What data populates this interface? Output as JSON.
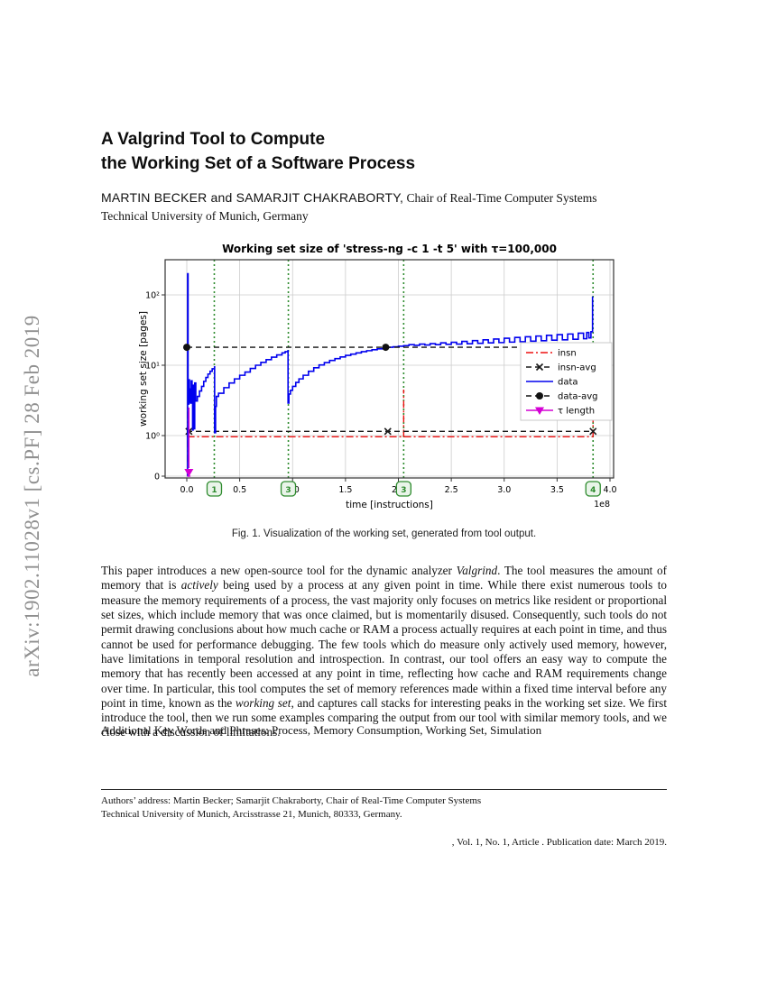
{
  "arxiv_watermark": "arXiv:1902.11028v1  [cs.PF]  28 Feb 2019",
  "header": {
    "title_line1": "A Valgrind Tool to Compute",
    "title_line2": "the Working Set of a Software Process",
    "authors_caps": "MARTIN BECKER and SAMARJIT CHAKRABORTY,",
    "authors_affiliation": " Chair of Real-Time Computer Systems",
    "affiliation_line": "Technical University of Munich, Germany"
  },
  "figure": {
    "caption": "Fig. 1.  Visualization of the working set, generated from tool output."
  },
  "abstract_runs": [
    {
      "t": "This paper introduces a new open-source tool for the dynamic analyzer "
    },
    {
      "t": "Valgrind",
      "i": true
    },
    {
      "t": ". The tool measures the amount of memory that is "
    },
    {
      "t": "actively",
      "i": true
    },
    {
      "t": " being used by a process at any given point in time. While there exist numerous tools to measure the memory requirements of a process, the vast majority only focuses on metrics like resident or proportional set sizes, which include memory that was once claimed, but is momentarily disused. Consequently, such tools do not permit drawing conclusions about how much cache or RAM a process actually requires at each point in time, and thus cannot be used for performance debugging. The few tools which do measure only actively used memory, however, have limitations in temporal resolution and introspection. In contrast, our tool offers an easy way to compute the memory that has recently been accessed at any point in time, reflecting how cache and RAM requirements change over time. In particular, this tool computes the set of memory references made within a fixed time interval before any point in time, known as the "
    },
    {
      "t": "working set",
      "i": true
    },
    {
      "t": ", and captures call stacks for interesting peaks in the working set size. We first introduce the tool, then we run some examples comparing the output from our tool with similar memory tools, and we close with a discussion of limitations."
    }
  ],
  "keywords": "Additional Key Words and Phrases: Process, Memory Consumption, Working Set, Simulation",
  "footnote": {
    "line1": "Authors’ address: Martin Becker; Samarjit Chakraborty, Chair of Real-Time Computer Systems",
    "line2": "Technical University of Munich, Arcisstrasse 21, Munich, 80333, Germany."
  },
  "pubinfo": ", Vol. 1, No. 1, Article . Publication date: March 2019.",
  "chart_data": {
    "type": "line",
    "title": "Working set size of 'stress-ng -c 1 -t 5' with τ=100,000",
    "xlabel": "time [instructions]",
    "ylabel": "working set size [pages]",
    "x_offset_label": "1e8",
    "x_ticks": [
      0.0,
      0.5,
      1.0,
      1.5,
      2.0,
      2.5,
      3.0,
      3.5,
      4.0
    ],
    "xlim": [
      -0.205,
      4.034
    ],
    "y_scale": "symlog",
    "y_ticks": [
      {
        "v": 0,
        "label": "0"
      },
      {
        "v": 1,
        "label": "10⁰"
      },
      {
        "v": 10,
        "label": "10¹"
      },
      {
        "v": 100,
        "label": "10²"
      }
    ],
    "grid": true,
    "legend_position": "center right",
    "grid_color": "#cccccc",
    "events": {
      "color": "#2e8b2e",
      "box_fill": "#e9f4e9",
      "x": [
        0.26,
        0.96,
        2.05,
        3.84
      ],
      "labels": [
        "1",
        "3",
        "3",
        "4"
      ]
    },
    "series": [
      {
        "name": "insn",
        "color": "#ee1111",
        "style": "dashdot",
        "segments": [
          [
            [
              0.005,
              0.97
            ],
            [
              3.84,
              0.97
            ]
          ],
          [
            [
              0.008,
              0.35
            ],
            [
              0.008,
              2.8
            ]
          ],
          [
            [
              2.05,
              0.97
            ],
            [
              2.05,
              4.5
            ]
          ],
          [
            [
              3.84,
              0.97
            ],
            [
              3.84,
              2.8
            ]
          ]
        ]
      },
      {
        "name": "insn-avg",
        "color": "#1a1a1a",
        "style": "dashed",
        "marker": "x",
        "marker_points": [
          [
            0.02,
            1.15
          ],
          [
            1.9,
            1.15
          ],
          [
            3.84,
            1.15
          ]
        ],
        "segments": [
          [
            [
              0.0,
              1.15
            ],
            [
              3.84,
              1.15
            ]
          ]
        ]
      },
      {
        "name": "data",
        "color": "#0000ee",
        "style": "solid",
        "step": true,
        "segments": [
          [
            [
              0.005,
              0
            ],
            [
              0.008,
              200
            ],
            [
              0.012,
              2.8
            ],
            [
              0.02,
              6.2
            ],
            [
              0.025,
              3.0
            ],
            [
              0.03,
              4.6
            ],
            [
              0.035,
              2.9
            ],
            [
              0.042,
              6.0
            ],
            [
              0.05,
              3.0
            ],
            [
              0.055,
              1.2
            ],
            [
              0.06,
              5.2
            ],
            [
              0.068,
              1.25
            ],
            [
              0.075,
              5.6
            ],
            [
              0.085,
              3.1
            ],
            [
              0.1,
              3.6
            ],
            [
              0.12,
              4.3
            ],
            [
              0.14,
              5.0
            ],
            [
              0.16,
              5.9
            ],
            [
              0.18,
              6.7
            ],
            [
              0.2,
              7.5
            ],
            [
              0.22,
              8.2
            ],
            [
              0.24,
              8.9
            ],
            [
              0.262,
              9.5
            ],
            [
              0.263,
              1.1
            ],
            [
              0.272,
              2.6
            ],
            [
              0.28,
              3.6
            ],
            [
              0.3,
              4.0
            ],
            [
              0.35,
              4.8
            ],
            [
              0.4,
              5.6
            ],
            [
              0.45,
              6.4
            ],
            [
              0.5,
              7.2
            ],
            [
              0.55,
              8.0
            ],
            [
              0.6,
              9.0
            ],
            [
              0.65,
              10.0
            ],
            [
              0.7,
              11.0
            ],
            [
              0.75,
              12.0
            ],
            [
              0.8,
              13.0
            ],
            [
              0.85,
              14.0
            ],
            [
              0.9,
              15.0
            ],
            [
              0.93,
              15.6
            ],
            [
              0.956,
              16.1
            ],
            [
              0.957,
              2.9
            ],
            [
              0.965,
              3.9
            ],
            [
              0.98,
              4.4
            ],
            [
              1.0,
              5.0
            ],
            [
              1.03,
              5.7
            ],
            [
              1.06,
              6.4
            ],
            [
              1.1,
              7.2
            ],
            [
              1.15,
              8.2
            ],
            [
              1.2,
              9.2
            ],
            [
              1.25,
              10.1
            ],
            [
              1.3,
              10.9
            ],
            [
              1.35,
              11.7
            ],
            [
              1.4,
              12.4
            ],
            [
              1.45,
              13.1
            ],
            [
              1.5,
              13.8
            ],
            [
              1.55,
              14.4
            ],
            [
              1.6,
              15.0
            ],
            [
              1.65,
              15.6
            ],
            [
              1.7,
              16.1
            ],
            [
              1.75,
              16.6
            ],
            [
              1.8,
              17.1
            ],
            [
              1.85,
              17.5
            ],
            [
              1.9,
              18.0
            ],
            [
              1.95,
              18.3
            ],
            [
              2.0,
              18.6
            ],
            [
              2.05,
              19.0
            ],
            [
              2.1,
              19.6
            ],
            [
              2.15,
              19.2
            ],
            [
              2.2,
              20.0
            ],
            [
              2.25,
              19.4
            ],
            [
              2.3,
              20.3
            ],
            [
              2.35,
              19.6
            ],
            [
              2.4,
              20.8
            ],
            [
              2.45,
              19.8
            ],
            [
              2.5,
              21.2
            ],
            [
              2.55,
              20.0
            ],
            [
              2.6,
              21.8
            ],
            [
              2.65,
              20.2
            ],
            [
              2.7,
              22.4
            ],
            [
              2.75,
              20.5
            ],
            [
              2.8,
              23.0
            ],
            [
              2.85,
              20.8
            ],
            [
              2.9,
              23.6
            ],
            [
              2.95,
              21.0
            ],
            [
              3.0,
              24.2
            ],
            [
              3.05,
              21.3
            ],
            [
              3.1,
              24.8
            ],
            [
              3.15,
              21.6
            ],
            [
              3.2,
              25.4
            ],
            [
              3.25,
              22.0
            ],
            [
              3.3,
              26.0
            ],
            [
              3.35,
              22.3
            ],
            [
              3.4,
              26.6
            ],
            [
              3.45,
              22.7
            ],
            [
              3.5,
              27.2
            ],
            [
              3.55,
              23.0
            ],
            [
              3.6,
              27.8
            ],
            [
              3.65,
              23.4
            ],
            [
              3.7,
              28.6
            ],
            [
              3.75,
              23.8
            ],
            [
              3.78,
              29.2
            ],
            [
              3.8,
              24.5
            ],
            [
              3.82,
              30.0
            ],
            [
              3.835,
              95
            ]
          ]
        ]
      },
      {
        "name": "data-avg",
        "color": "#111111",
        "style": "dashed",
        "marker": "circle",
        "marker_points": [
          [
            0.0,
            18
          ],
          [
            1.88,
            18
          ],
          [
            3.84,
            18
          ]
        ],
        "segments": [
          [
            [
              0.0,
              18
            ],
            [
              3.84,
              18
            ]
          ]
        ]
      },
      {
        "name": "τ length",
        "color": "#d400d4",
        "style": "solid",
        "marker": "triangle-down",
        "marker_points": [
          [
            0.02,
            0.1
          ]
        ],
        "segments": [
          [
            [
              0.02,
              2.5
            ],
            [
              0.02,
              0.2
            ]
          ],
          [
            [
              0.005,
              0
            ],
            [
              0.035,
              0
            ]
          ]
        ]
      }
    ]
  }
}
